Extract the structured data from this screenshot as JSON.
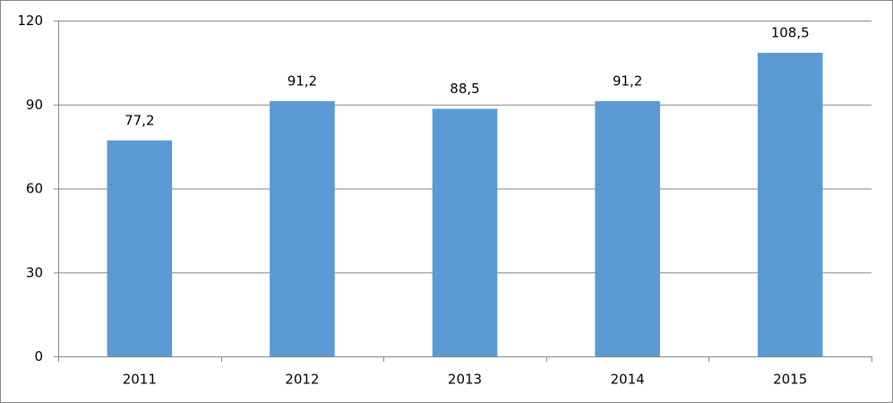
{
  "chart_data": {
    "type": "bar",
    "categories": [
      "2011",
      "2012",
      "2013",
      "2014",
      "2015"
    ],
    "values": [
      77.2,
      91.2,
      88.5,
      91.2,
      108.5
    ],
    "value_labels": [
      "77,2",
      "91,2",
      "88,5",
      "91,2",
      "108,5"
    ],
    "color": "#5b9bd5",
    "ylim": [
      0,
      120
    ],
    "yticks": [
      0,
      30,
      60,
      90,
      120
    ],
    "grid": true
  }
}
